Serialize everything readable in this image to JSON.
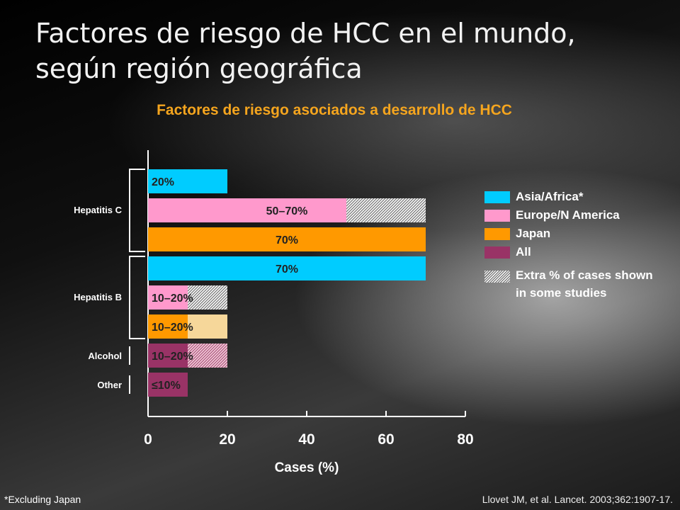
{
  "slide": {
    "title": "Factores de riesgo de HCC en el mundo, según región geográfica",
    "subtitle": "Factores de riesgo asociados a desarrollo de HCC",
    "footnote": "*Excluding Japan",
    "citation": "Llovet JM, et al. Lancet. 2003;362:1907-17."
  },
  "colors": {
    "asia_africa": "#00ccff",
    "europe_na": "#ff99cc",
    "japan": "#ff9900",
    "all": "#993366",
    "extra_hatch": "#c8c8c8"
  },
  "chart_data": {
    "type": "bar",
    "orientation": "horizontal",
    "xlabel": "Cases (%)",
    "xlim": [
      0,
      80
    ],
    "xticks": [
      0,
      20,
      40,
      60,
      80
    ],
    "legend_position": "right",
    "groups": [
      {
        "name": "Hepatitis C",
        "rows": [
          0,
          1,
          2
        ]
      },
      {
        "name": "Hepatitis B",
        "rows": [
          3,
          4,
          5
        ]
      },
      {
        "name": "Alcohol",
        "rows": [
          6
        ]
      },
      {
        "name": "Other",
        "rows": [
          7
        ]
      }
    ],
    "series": [
      {
        "name": "Asia/Africa*",
        "color_key": "asia_africa"
      },
      {
        "name": "Europe/N America",
        "color_key": "europe_na"
      },
      {
        "name": "Japan",
        "color_key": "japan"
      },
      {
        "name": "All",
        "color_key": "all"
      },
      {
        "name": "Extra % of cases shown in some studies",
        "color_key": "extra_hatch"
      }
    ],
    "bars": [
      {
        "group": "Hepatitis C",
        "series": "Asia/Africa*",
        "min": 20,
        "max": 20,
        "label": "20%"
      },
      {
        "group": "Hepatitis C",
        "series": "Europe/N America",
        "min": 50,
        "max": 70,
        "label": "50–70%"
      },
      {
        "group": "Hepatitis C",
        "series": "Japan",
        "min": 70,
        "max": 70,
        "label": "70%"
      },
      {
        "group": "Hepatitis B",
        "series": "Asia/Africa*",
        "min": 70,
        "max": 70,
        "label": "70%"
      },
      {
        "group": "Hepatitis B",
        "series": "Europe/N America",
        "min": 10,
        "max": 20,
        "label": "10–20%"
      },
      {
        "group": "Hepatitis B",
        "series": "Japan",
        "min": 10,
        "max": 20,
        "label": "10–20%"
      },
      {
        "group": "Alcohol",
        "series": "All",
        "min": 10,
        "max": 20,
        "label": "10–20%"
      },
      {
        "group": "Other",
        "series": "All",
        "min": 10,
        "max": 10,
        "label": "≤10%"
      }
    ]
  }
}
